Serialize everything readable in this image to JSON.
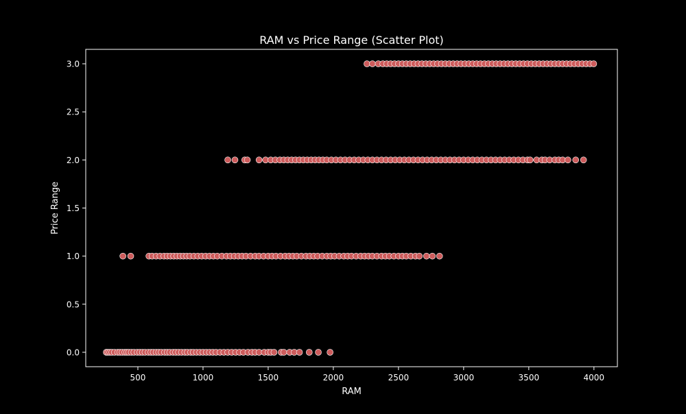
{
  "chart_data": {
    "type": "scatter",
    "title": "RAM vs Price Range (Scatter Plot)",
    "xlabel": "RAM",
    "ylabel": "Price Range",
    "xlim": [
      100,
      4180
    ],
    "ylim": [
      -0.15,
      3.15
    ],
    "x_ticks": [
      500,
      1000,
      1500,
      2000,
      2500,
      3000,
      3500,
      4000
    ],
    "x_tick_labels": [
      "500",
      "1000",
      "1500",
      "2000",
      "2500",
      "3000",
      "3500",
      "4000"
    ],
    "y_ticks": [
      0.0,
      0.5,
      1.0,
      1.5,
      2.0,
      2.5,
      3.0
    ],
    "y_tick_labels": [
      "0.0",
      "0.5",
      "1.0",
      "1.5",
      "2.0",
      "2.5",
      "3.0"
    ],
    "grid": false,
    "legend": "none",
    "colors": {
      "background": "#000000",
      "foreground": "#ffffff",
      "marker_fill": "#cd5c5c",
      "marker_edge": "#ffffff"
    },
    "series": [
      {
        "points": [
          [
            258,
            0
          ],
          [
            270,
            0
          ],
          [
            285,
            0
          ],
          [
            300,
            0
          ],
          [
            320,
            0
          ],
          [
            345,
            0
          ],
          [
            362,
            0
          ],
          [
            380,
            0
          ],
          [
            400,
            0
          ],
          [
            415,
            0
          ],
          [
            430,
            0
          ],
          [
            450,
            0
          ],
          [
            470,
            0
          ],
          [
            495,
            0
          ],
          [
            515,
            0
          ],
          [
            535,
            0
          ],
          [
            555,
            0
          ],
          [
            580,
            0
          ],
          [
            600,
            0
          ],
          [
            618,
            0
          ],
          [
            640,
            0
          ],
          [
            660,
            0
          ],
          [
            680,
            0
          ],
          [
            705,
            0
          ],
          [
            725,
            0
          ],
          [
            745,
            0
          ],
          [
            770,
            0
          ],
          [
            790,
            0
          ],
          [
            812,
            0
          ],
          [
            835,
            0
          ],
          [
            860,
            0
          ],
          [
            880,
            0
          ],
          [
            905,
            0
          ],
          [
            925,
            0
          ],
          [
            950,
            0
          ],
          [
            975,
            0
          ],
          [
            1000,
            0
          ],
          [
            1025,
            0
          ],
          [
            1050,
            0
          ],
          [
            1075,
            0
          ],
          [
            1100,
            0
          ],
          [
            1130,
            0
          ],
          [
            1160,
            0
          ],
          [
            1190,
            0
          ],
          [
            1220,
            0
          ],
          [
            1250,
            0
          ],
          [
            1280,
            0
          ],
          [
            1310,
            0
          ],
          [
            1345,
            0
          ],
          [
            1375,
            0
          ],
          [
            1400,
            0
          ],
          [
            1430,
            0
          ],
          [
            1470,
            0
          ],
          [
            1500,
            0
          ],
          [
            1520,
            0
          ],
          [
            1545,
            0
          ],
          [
            1600,
            0
          ],
          [
            1620,
            0
          ],
          [
            1665,
            0
          ],
          [
            1700,
            0
          ],
          [
            1740,
            0
          ],
          [
            1815,
            0
          ],
          [
            1885,
            0
          ],
          [
            1975,
            0
          ],
          [
            385,
            1
          ],
          [
            445,
            1
          ],
          [
            585,
            1
          ],
          [
            610,
            1
          ],
          [
            640,
            1
          ],
          [
            670,
            1
          ],
          [
            700,
            1
          ],
          [
            725,
            1
          ],
          [
            750,
            1
          ],
          [
            775,
            1
          ],
          [
            800,
            1
          ],
          [
            825,
            1
          ],
          [
            850,
            1
          ],
          [
            875,
            1
          ],
          [
            900,
            1
          ],
          [
            930,
            1
          ],
          [
            960,
            1
          ],
          [
            990,
            1
          ],
          [
            1020,
            1
          ],
          [
            1050,
            1
          ],
          [
            1080,
            1
          ],
          [
            1110,
            1
          ],
          [
            1145,
            1
          ],
          [
            1180,
            1
          ],
          [
            1210,
            1
          ],
          [
            1240,
            1
          ],
          [
            1270,
            1
          ],
          [
            1300,
            1
          ],
          [
            1330,
            1
          ],
          [
            1365,
            1
          ],
          [
            1400,
            1
          ],
          [
            1430,
            1
          ],
          [
            1465,
            1
          ],
          [
            1500,
            1
          ],
          [
            1530,
            1
          ],
          [
            1560,
            1
          ],
          [
            1595,
            1
          ],
          [
            1630,
            1
          ],
          [
            1660,
            1
          ],
          [
            1690,
            1
          ],
          [
            1720,
            1
          ],
          [
            1755,
            1
          ],
          [
            1790,
            1
          ],
          [
            1820,
            1
          ],
          [
            1850,
            1
          ],
          [
            1880,
            1
          ],
          [
            1915,
            1
          ],
          [
            1950,
            1
          ],
          [
            1980,
            1
          ],
          [
            2010,
            1
          ],
          [
            2045,
            1
          ],
          [
            2080,
            1
          ],
          [
            2110,
            1
          ],
          [
            2140,
            1
          ],
          [
            2175,
            1
          ],
          [
            2210,
            1
          ],
          [
            2240,
            1
          ],
          [
            2270,
            1
          ],
          [
            2300,
            1
          ],
          [
            2335,
            1
          ],
          [
            2370,
            1
          ],
          [
            2400,
            1
          ],
          [
            2430,
            1
          ],
          [
            2465,
            1
          ],
          [
            2500,
            1
          ],
          [
            2530,
            1
          ],
          [
            2560,
            1
          ],
          [
            2595,
            1
          ],
          [
            2630,
            1
          ],
          [
            2660,
            1
          ],
          [
            2715,
            1
          ],
          [
            2760,
            1
          ],
          [
            2815,
            1
          ],
          [
            1190,
            2
          ],
          [
            1245,
            2
          ],
          [
            1320,
            2
          ],
          [
            1340,
            2
          ],
          [
            1430,
            2
          ],
          [
            1480,
            2
          ],
          [
            1520,
            2
          ],
          [
            1555,
            2
          ],
          [
            1590,
            2
          ],
          [
            1620,
            2
          ],
          [
            1650,
            2
          ],
          [
            1680,
            2
          ],
          [
            1710,
            2
          ],
          [
            1740,
            2
          ],
          [
            1770,
            2
          ],
          [
            1800,
            2
          ],
          [
            1830,
            2
          ],
          [
            1860,
            2
          ],
          [
            1890,
            2
          ],
          [
            1920,
            2
          ],
          [
            1950,
            2
          ],
          [
            1985,
            2
          ],
          [
            2020,
            2
          ],
          [
            2055,
            2
          ],
          [
            2090,
            2
          ],
          [
            2125,
            2
          ],
          [
            2160,
            2
          ],
          [
            2195,
            2
          ],
          [
            2230,
            2
          ],
          [
            2265,
            2
          ],
          [
            2300,
            2
          ],
          [
            2335,
            2
          ],
          [
            2370,
            2
          ],
          [
            2405,
            2
          ],
          [
            2440,
            2
          ],
          [
            2475,
            2
          ],
          [
            2510,
            2
          ],
          [
            2545,
            2
          ],
          [
            2580,
            2
          ],
          [
            2615,
            2
          ],
          [
            2650,
            2
          ],
          [
            2685,
            2
          ],
          [
            2720,
            2
          ],
          [
            2755,
            2
          ],
          [
            2790,
            2
          ],
          [
            2825,
            2
          ],
          [
            2860,
            2
          ],
          [
            2895,
            2
          ],
          [
            2930,
            2
          ],
          [
            2965,
            2
          ],
          [
            3000,
            2
          ],
          [
            3035,
            2
          ],
          [
            3070,
            2
          ],
          [
            3105,
            2
          ],
          [
            3140,
            2
          ],
          [
            3175,
            2
          ],
          [
            3210,
            2
          ],
          [
            3245,
            2
          ],
          [
            3280,
            2
          ],
          [
            3315,
            2
          ],
          [
            3350,
            2
          ],
          [
            3385,
            2
          ],
          [
            3420,
            2
          ],
          [
            3455,
            2
          ],
          [
            3490,
            2
          ],
          [
            3510,
            2
          ],
          [
            3560,
            2
          ],
          [
            3600,
            2
          ],
          [
            3625,
            2
          ],
          [
            3660,
            2
          ],
          [
            3700,
            2
          ],
          [
            3730,
            2
          ],
          [
            3760,
            2
          ],
          [
            3800,
            2
          ],
          [
            3860,
            2
          ],
          [
            3920,
            2
          ],
          [
            2258,
            3
          ],
          [
            2300,
            3
          ],
          [
            2345,
            3
          ],
          [
            2380,
            3
          ],
          [
            2410,
            3
          ],
          [
            2440,
            3
          ],
          [
            2470,
            3
          ],
          [
            2500,
            3
          ],
          [
            2530,
            3
          ],
          [
            2560,
            3
          ],
          [
            2590,
            3
          ],
          [
            2620,
            3
          ],
          [
            2650,
            3
          ],
          [
            2680,
            3
          ],
          [
            2710,
            3
          ],
          [
            2740,
            3
          ],
          [
            2770,
            3
          ],
          [
            2800,
            3
          ],
          [
            2830,
            3
          ],
          [
            2860,
            3
          ],
          [
            2890,
            3
          ],
          [
            2920,
            3
          ],
          [
            2950,
            3
          ],
          [
            2980,
            3
          ],
          [
            3010,
            3
          ],
          [
            3040,
            3
          ],
          [
            3070,
            3
          ],
          [
            3100,
            3
          ],
          [
            3130,
            3
          ],
          [
            3160,
            3
          ],
          [
            3190,
            3
          ],
          [
            3220,
            3
          ],
          [
            3250,
            3
          ],
          [
            3280,
            3
          ],
          [
            3310,
            3
          ],
          [
            3340,
            3
          ],
          [
            3370,
            3
          ],
          [
            3400,
            3
          ],
          [
            3430,
            3
          ],
          [
            3460,
            3
          ],
          [
            3490,
            3
          ],
          [
            3520,
            3
          ],
          [
            3550,
            3
          ],
          [
            3580,
            3
          ],
          [
            3610,
            3
          ],
          [
            3640,
            3
          ],
          [
            3670,
            3
          ],
          [
            3700,
            3
          ],
          [
            3730,
            3
          ],
          [
            3760,
            3
          ],
          [
            3790,
            3
          ],
          [
            3820,
            3
          ],
          [
            3850,
            3
          ],
          [
            3880,
            3
          ],
          [
            3910,
            3
          ],
          [
            3940,
            3
          ],
          [
            3970,
            3
          ],
          [
            3998,
            3
          ]
        ]
      }
    ]
  }
}
